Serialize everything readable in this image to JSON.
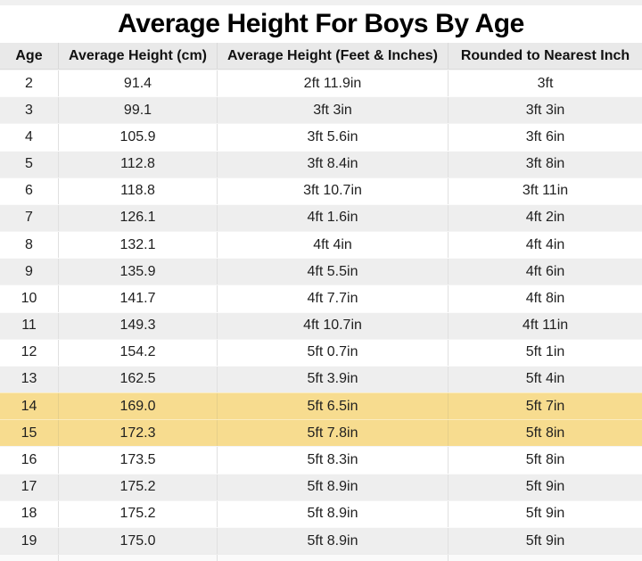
{
  "page_title": "Average Height For Boys By Age",
  "colors": {
    "header_bg": "#e9e9e9",
    "row_alt_bg": "#eeeeee",
    "highlight_bg": "#f7dc8f",
    "divider": "#d9d9d9",
    "text": "#1f1f1f",
    "top_strip": "#f0f0f0",
    "partial_row_bg": "#fafafa"
  },
  "chart_data": {
    "type": "table",
    "title": "Average Height For Boys By Age",
    "columns": [
      "Age",
      "Average Height (cm)",
      "Average Height (Feet & Inches)",
      "Rounded to Nearest Inch"
    ],
    "rows": [
      [
        "2",
        "91.4",
        "2ft 11.9in",
        "3ft"
      ],
      [
        "3",
        "99.1",
        "3ft 3in",
        "3ft 3in"
      ],
      [
        "4",
        "105.9",
        "3ft 5.6in",
        "3ft 6in"
      ],
      [
        "5",
        "112.8",
        "3ft 8.4in",
        "3ft 8in"
      ],
      [
        "6",
        "118.8",
        "3ft 10.7in",
        "3ft 11in"
      ],
      [
        "7",
        "126.1",
        "4ft 1.6in",
        "4ft 2in"
      ],
      [
        "8",
        "132.1",
        "4ft 4in",
        "4ft 4in"
      ],
      [
        "9",
        "135.9",
        "4ft 5.5in",
        "4ft 6in"
      ],
      [
        "10",
        "141.7",
        "4ft 7.7in",
        "4ft 8in"
      ],
      [
        "11",
        "149.3",
        "4ft 10.7in",
        "4ft 11in"
      ],
      [
        "12",
        "154.2",
        "5ft 0.7in",
        "5ft 1in"
      ],
      [
        "13",
        "162.5",
        "5ft 3.9in",
        "5ft 4in"
      ],
      [
        "14",
        "169.0",
        "5ft 6.5in",
        "5ft 7in"
      ],
      [
        "15",
        "172.3",
        "5ft 7.8in",
        "5ft 8in"
      ],
      [
        "16",
        "173.5",
        "5ft 8.3in",
        "5ft 8in"
      ],
      [
        "17",
        "175.2",
        "5ft 8.9in",
        "5ft 9in"
      ],
      [
        "18",
        "175.2",
        "5ft 8.9in",
        "5ft 9in"
      ],
      [
        "19",
        "175.0",
        "5ft 8.9in",
        "5ft 9in"
      ]
    ],
    "highlighted_ages": [
      14,
      15
    ],
    "layout_hints": {
      "striping": "even ages white, odd ages light gray",
      "highlight_color": "#f7dc8f",
      "columns_alignment": "center"
    }
  }
}
